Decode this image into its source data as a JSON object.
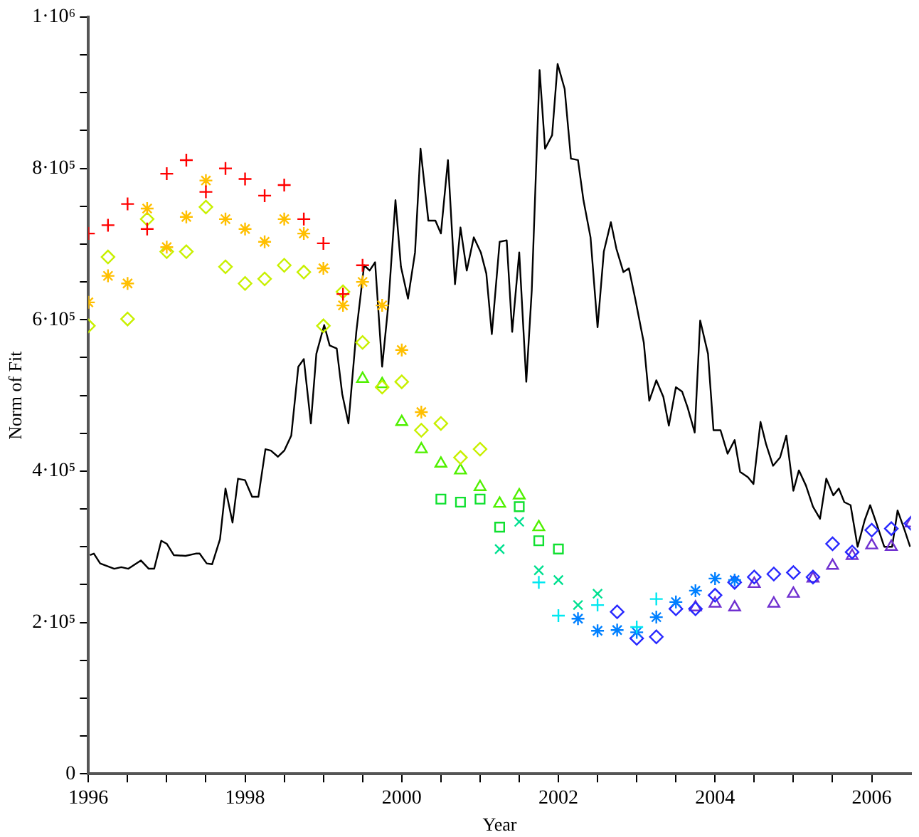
{
  "chart_data": {
    "type": "scatter",
    "xlabel": "Year",
    "ylabel": "Norm of Fit",
    "xlim": [
      1996,
      2006.5
    ],
    "xticks": [
      1996,
      {
        "value": 1996.5,
        "label": null
      },
      {
        "value": 1997,
        "label": null
      },
      {
        "value": 1997.5,
        "label": null
      },
      1998,
      {
        "value": 1998.5,
        "label": null
      },
      {
        "value": 1999,
        "label": null
      },
      {
        "value": 1999.5,
        "label": null
      },
      2000,
      {
        "value": 2000.5,
        "label": null
      },
      {
        "value": 2001,
        "label": null
      },
      {
        "value": 2001.5,
        "label": null
      },
      2002,
      {
        "value": 2002.5,
        "label": null
      },
      {
        "value": 2003,
        "label": null
      },
      {
        "value": 2003.5,
        "label": null
      },
      2004,
      {
        "value": 2004.5,
        "label": null
      },
      {
        "value": 2005,
        "label": null
      },
      {
        "value": 2005.5,
        "label": null
      },
      2006
    ],
    "ylim": [
      0,
      1000000
    ],
    "yticks": [
      0,
      {
        "value": 50000,
        "label": null
      },
      {
        "value": 100000,
        "label": null
      },
      {
        "value": 150000,
        "label": null
      },
      {
        "value": 200000,
        "label": "2·10⁵"
      },
      {
        "value": 250000,
        "label": null
      },
      {
        "value": 300000,
        "label": null
      },
      {
        "value": 350000,
        "label": null
      },
      {
        "value": 400000,
        "label": "4·10⁵"
      },
      {
        "value": 450000,
        "label": null
      },
      {
        "value": 500000,
        "label": null
      },
      {
        "value": 550000,
        "label": null
      },
      {
        "value": 600000,
        "label": "6·10⁵"
      },
      {
        "value": 650000,
        "label": null
      },
      {
        "value": 700000,
        "label": null
      },
      {
        "value": 750000,
        "label": null
      },
      {
        "value": 800000,
        "label": "8·10⁵"
      },
      {
        "value": 850000,
        "label": null
      },
      {
        "value": 900000,
        "label": null
      },
      {
        "value": 950000,
        "label": null
      },
      {
        "value": 1000000,
        "label": "1·10⁶"
      }
    ],
    "grid": false,
    "legend": false,
    "series": [
      {
        "type": "line",
        "color": "#000000",
        "marker": "none",
        "line_style": "solid",
        "x": [
          1996.02,
          1996.07,
          1996.15,
          1996.33,
          1996.42,
          1996.51,
          1996.67,
          1996.77,
          1996.84,
          1996.93,
          1997.0,
          1997.09,
          1997.24,
          1997.37,
          1997.42,
          1997.51,
          1997.58,
          1997.68,
          1997.75,
          1997.84,
          1997.91,
          1998.0,
          1998.09,
          1998.17,
          1998.26,
          1998.33,
          1998.42,
          1998.5,
          1998.59,
          1998.68,
          1998.75,
          1998.84,
          1998.91,
          1999.01,
          1999.08,
          1999.17,
          1999.24,
          1999.32,
          1999.42,
          1999.52,
          1999.59,
          1999.66,
          1999.75,
          1999.83,
          1999.92,
          1999.99,
          2000.08,
          2000.17,
          2000.24,
          2000.34,
          2000.43,
          2000.5,
          2000.59,
          2000.68,
          2000.75,
          2000.83,
          2000.92,
          2001.01,
          2001.08,
          2001.15,
          2001.25,
          2001.34,
          2001.41,
          2001.5,
          2001.59,
          2001.66,
          2001.76,
          2001.83,
          2001.92,
          2001.99,
          2002.08,
          2002.16,
          2002.25,
          2002.32,
          2002.41,
          2002.5,
          2002.58,
          2002.67,
          2002.74,
          2002.83,
          2002.9,
          2002.99,
          2003.09,
          2003.16,
          2003.25,
          2003.34,
          2003.41,
          2003.5,
          2003.58,
          2003.65,
          2003.74,
          2003.81,
          2003.91,
          2003.98,
          2004.07,
          2004.16,
          2004.25,
          2004.32,
          2004.42,
          2004.49,
          2004.58,
          2004.65,
          2004.74,
          2004.83,
          2004.91,
          2005.0,
          2005.07,
          2005.16,
          2005.25,
          2005.34,
          2005.42,
          2005.51,
          2005.58,
          2005.65,
          2005.73,
          2005.82,
          2005.91,
          2005.98,
          2006.07,
          2006.16,
          2006.26,
          2006.33,
          2006.42,
          2006.49
        ],
        "values": [
          289000,
          291000,
          278000,
          271000,
          273000,
          271000,
          282000,
          271000,
          271000,
          308000,
          304000,
          289000,
          288000,
          291000,
          291000,
          278000,
          277000,
          310000,
          377000,
          332000,
          390000,
          388000,
          366000,
          366000,
          429000,
          427000,
          419000,
          427000,
          447000,
          538000,
          548000,
          463000,
          555000,
          593000,
          566000,
          562000,
          502000,
          463000,
          584000,
          672000,
          665000,
          676000,
          538000,
          621000,
          758000,
          670000,
          628000,
          689000,
          826000,
          731000,
          731000,
          714000,
          811000,
          647000,
          722000,
          665000,
          709000,
          689000,
          661000,
          581000,
          703000,
          705000,
          584000,
          689000,
          518000,
          639000,
          930000,
          826000,
          844000,
          938000,
          905000,
          813000,
          811000,
          758000,
          709000,
          590000,
          690000,
          729000,
          694000,
          663000,
          668000,
          623000,
          570000,
          493000,
          520000,
          498000,
          460000,
          511000,
          505000,
          484000,
          451000,
          599000,
          555000,
          454000,
          454000,
          423000,
          441000,
          399000,
          392000,
          383000,
          465000,
          436000,
          407000,
          418000,
          447000,
          374000,
          401000,
          381000,
          353000,
          337000,
          390000,
          368000,
          377000,
          359000,
          355000,
          300000,
          335000,
          355000,
          328000,
          300000,
          300000,
          348000,
          322000,
          300000
        ]
      },
      {
        "color": "#ff0000",
        "marker": "plus",
        "x": [
          1996,
          1996.25,
          1996.5,
          1996.75,
          1997,
          1997.25,
          1997.5,
          1997.75,
          1998,
          1998.25,
          1998.5,
          1998.75,
          1999,
          1999.25,
          1999.5
        ],
        "values": [
          714000,
          725000,
          753000,
          720000,
          793000,
          811000,
          769000,
          800000,
          786000,
          764000,
          778000,
          733000,
          701000,
          634000,
          672000
        ]
      },
      {
        "color": "#ffbf00",
        "marker": "cross",
        "x": [
          1996,
          1996.25,
          1996.5,
          1996.75,
          1997,
          1997.25,
          1997.5,
          1997.75,
          1998,
          1998.25,
          1998.5,
          1998.75,
          1999,
          1999.25,
          1999.5,
          1999.75,
          2000,
          2000.25
        ],
        "values": [
          623000,
          658000,
          648000,
          747000,
          696000,
          736000,
          784000,
          733000,
          720000,
          703000,
          733000,
          714000,
          668000,
          619000,
          650000,
          619000,
          560000,
          478000
        ]
      },
      {
        "color": "#c8f000",
        "marker": "diamond",
        "x": [
          1996,
          1996.25,
          1996.5,
          1996.75,
          1997,
          1997.25,
          1997.5,
          1997.75,
          1998,
          1998.25,
          1998.5,
          1998.75,
          1999,
          1999.25,
          1999.5,
          1999.75,
          2000,
          2000.25,
          2000.5,
          2000.75,
          2001
        ],
        "values": [
          592000,
          683000,
          601000,
          733000,
          690000,
          690000,
          749000,
          670000,
          648000,
          654000,
          672000,
          663000,
          592000,
          637000,
          570000,
          511000,
          518000,
          454000,
          463000,
          418000,
          429000
        ]
      },
      {
        "color": "#50f000",
        "marker": "triangle",
        "x": [
          1999.5,
          1999.75,
          2000,
          2000.25,
          2000.5,
          2000.75,
          2001,
          2001.25,
          2001.5,
          2001.75
        ],
        "values": [
          522000,
          515000,
          465000,
          429000,
          410000,
          401000,
          379000,
          357000,
          368000,
          326000
        ]
      },
      {
        "color": "#10e030",
        "marker": "square",
        "x": [
          2000.5,
          2000.75,
          2001,
          2001.25,
          2001.5,
          2001.75,
          2002
        ],
        "values": [
          363000,
          359000,
          363000,
          326000,
          353000,
          308000,
          297000
        ]
      },
      {
        "color": "#00e090",
        "marker": "x",
        "x": [
          2001.25,
          2001.5,
          2001.75,
          2002,
          2002.25,
          2002.5
        ],
        "values": [
          297000,
          333000,
          269000,
          256000,
          223000,
          238000
        ]
      },
      {
        "color": "#00e8f0",
        "marker": "plus",
        "x": [
          2001.75,
          2002,
          2002.5,
          2003,
          2003.25
        ],
        "values": [
          253000,
          209000,
          223000,
          194000,
          231000
        ]
      },
      {
        "color": "#0080ff",
        "marker": "cross",
        "x": [
          2002.25,
          2002.5,
          2002.75,
          2003,
          2003.25,
          2003.5,
          2003.75,
          2004,
          2004.25
        ],
        "values": [
          205000,
          189000,
          190000,
          187000,
          207000,
          227000,
          242000,
          258000,
          256000
        ]
      },
      {
        "color": "#2828ff",
        "marker": "diamond",
        "x": [
          2002.75,
          2003,
          2003.25,
          2003.5,
          2003.75,
          2004,
          2004.25,
          2004.5,
          2004.75,
          2005,
          2005.25,
          2005.5,
          2005.75,
          2006,
          2006.25,
          2006.5
        ],
        "values": [
          214000,
          179000,
          181000,
          218000,
          218000,
          236000,
          253000,
          260000,
          264000,
          266000,
          260000,
          304000,
          293000,
          322000,
          324000,
          331000
        ]
      },
      {
        "color": "#7030d0",
        "marker": "triangle",
        "x": [
          2003.75,
          2004,
          2004.25,
          2004.5,
          2004.75,
          2005,
          2005.25,
          2005.5,
          2005.75,
          2006,
          2006.25,
          2006.5
        ],
        "values": [
          220000,
          225000,
          220000,
          251000,
          225000,
          238000,
          258000,
          275000,
          288000,
          302000,
          300000,
          331000
        ]
      }
    ]
  }
}
